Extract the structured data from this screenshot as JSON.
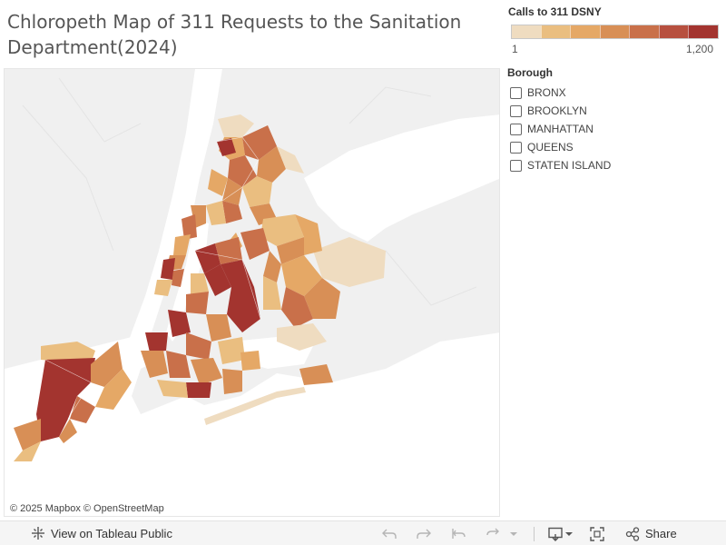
{
  "title": "Chloropeth Map of 311 Requests to the Sanitation Department(2024)",
  "legend": {
    "title": "Calls to 311 DSNY",
    "min_label": "1",
    "max_label": "1,200",
    "colors": [
      "#efdcc0",
      "#eabe80",
      "#e5a866",
      "#d88f56",
      "#c9704a",
      "#b7503f",
      "#a3342f"
    ]
  },
  "borough_filter": {
    "title": "Borough",
    "items": [
      {
        "label": "BRONX",
        "checked": false
      },
      {
        "label": "BROOKLYN",
        "checked": false
      },
      {
        "label": "MANHATTAN",
        "checked": false
      },
      {
        "label": "QUEENS",
        "checked": false
      },
      {
        "label": "STATEN ISLAND",
        "checked": false
      }
    ]
  },
  "map": {
    "attribution": "© 2025 Mapbox © OpenStreetMap"
  },
  "toolbar": {
    "view_label": "View on Tableau Public",
    "share_label": "Share"
  }
}
